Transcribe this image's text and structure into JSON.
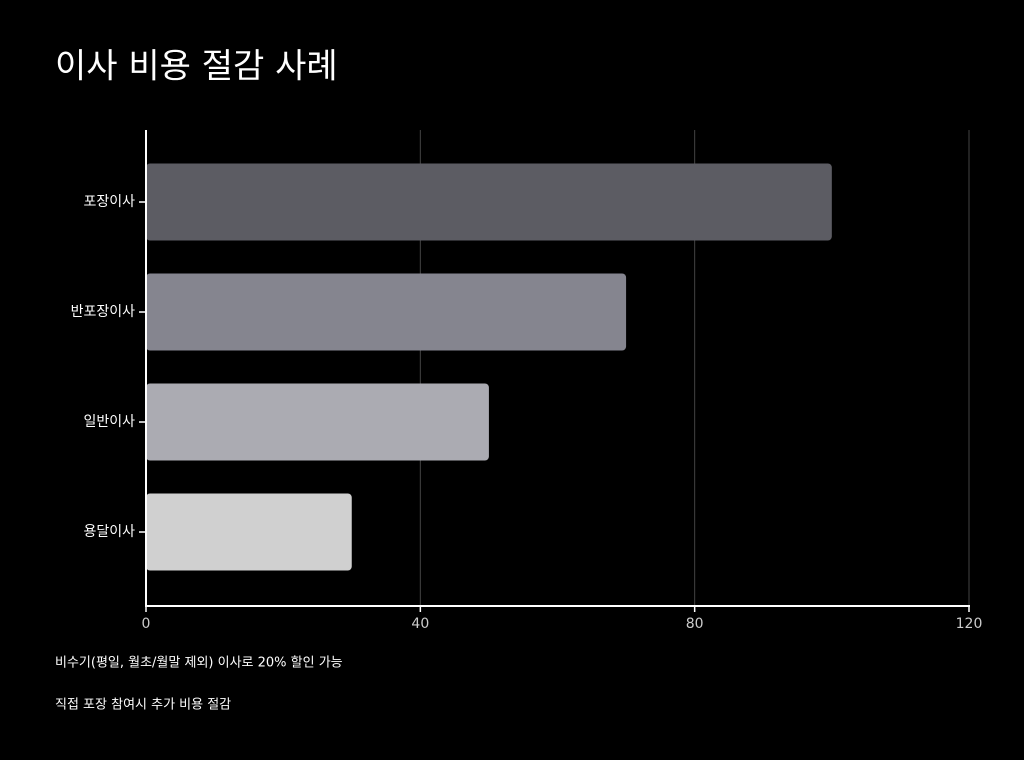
{
  "chart_data": {
    "type": "bar",
    "orientation": "horizontal",
    "title": "이사 비용 절감 사례",
    "categories": [
      "포장이사",
      "반포장이사",
      "일반이사",
      "용달이사"
    ],
    "values": [
      100,
      70,
      50,
      30
    ],
    "colors": [
      "#5c5c63",
      "#85858f",
      "#ababb2",
      "#d0d0d0"
    ],
    "xlim": [
      0,
      120
    ],
    "xticks": [
      0,
      40,
      80,
      120
    ],
    "grid": true,
    "notes": [
      "비수기(평일, 월초/월말 제외) 이사로 20% 할인 가능",
      "직접 포장 참여시 추가 비용 절감"
    ]
  }
}
